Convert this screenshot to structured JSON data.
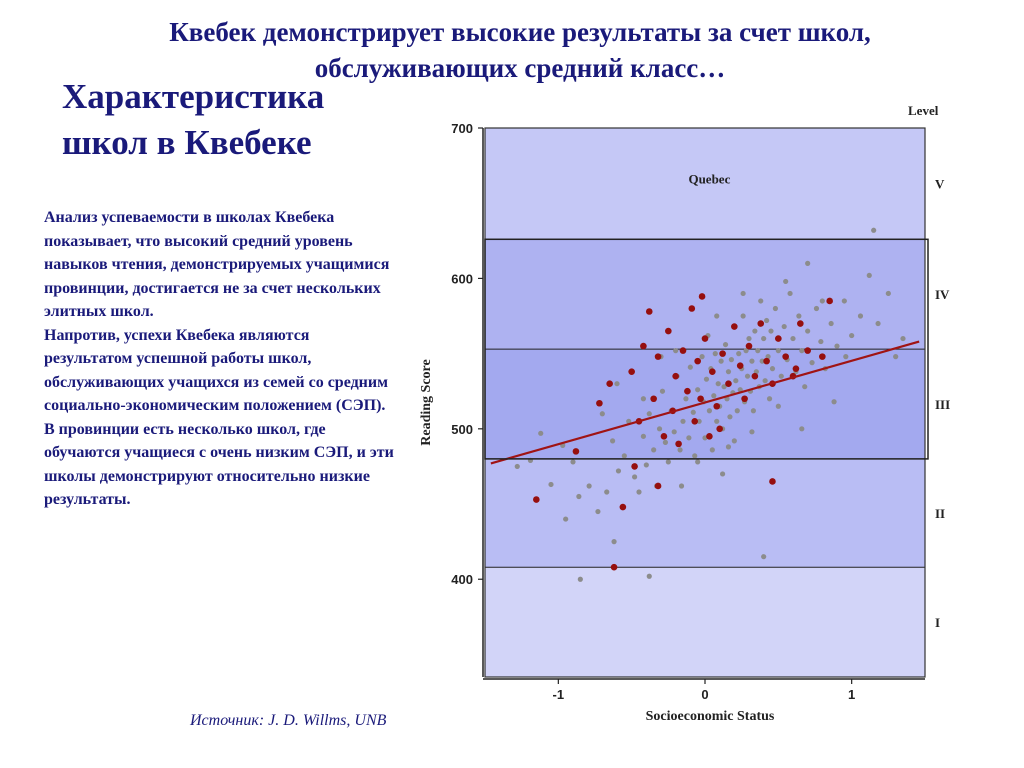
{
  "slide": {
    "headline": "Квебек демонстрирует высокие результаты за счет школ, обслуживающих средний класс…",
    "section_title": "Характеристика школ в Квебеке",
    "body": "Анализ успеваемости в школах Квебека показывает, что высокий средний уровень навыков чтения, демонстрируемых учащимися провинции, достигается не за счет нескольких элитных школ.\nНапротив, успехи Квебека являются результатом успешной работы школ, обслуживающих учащихся из семей со средним социально-экономическим положением (СЭП).\nВ провинции есть несколько школ, где обучаются учащиеся с очень низким СЭП, и эти школы демонстрируют относительно низкие результаты.",
    "source": "Источник:  J. D. Willms, UNB"
  },
  "chart_data": {
    "type": "scatter",
    "title": "",
    "xlabel": "Socioeconomic Status",
    "ylabel": "Reading Score",
    "xlim": [
      -1.5,
      1.5
    ],
    "ylim": [
      335,
      700
    ],
    "x_ticks": [
      {
        "value": -1,
        "label": "-1"
      },
      {
        "value": 0,
        "label": "0"
      },
      {
        "value": 1,
        "label": "1"
      }
    ],
    "y_ticks": [
      {
        "value": 400,
        "label": "400"
      },
      {
        "value": 500,
        "label": "500"
      },
      {
        "value": 600,
        "label": "600"
      },
      {
        "value": 700,
        "label": "700"
      }
    ],
    "levels_label": "Level",
    "levels": [
      {
        "name": "I",
        "from": 335,
        "to": 408,
        "color": "#d2d4f8"
      },
      {
        "name": "II",
        "from": 408,
        "to": 480,
        "color": "#b9bdf4"
      },
      {
        "name": "III",
        "from": 480,
        "to": 553,
        "color": "#a3a9ef"
      },
      {
        "name": "IV",
        "from": 553,
        "to": 626,
        "color": "#aeb2f1"
      },
      {
        "name": "V",
        "from": 626,
        "to": 700,
        "color": "#c5c8f6"
      }
    ],
    "annotation": {
      "text": "Quebec",
      "x": 0.03,
      "y": 663
    },
    "regression": {
      "x1": -1.46,
      "y1": 477,
      "x2": 1.46,
      "y2": 558,
      "color": "#a01414"
    },
    "series": [
      {
        "color": "#8c8c8c",
        "points": [
          [
            -1.28,
            475
          ],
          [
            -1.19,
            479
          ],
          [
            -1.12,
            497
          ],
          [
            -1.05,
            463
          ],
          [
            -0.97,
            489
          ],
          [
            -0.9,
            478
          ],
          [
            -0.86,
            455
          ],
          [
            -0.79,
            462
          ],
          [
            -0.73,
            445
          ],
          [
            -0.67,
            458
          ],
          [
            -0.63,
            492
          ],
          [
            -0.59,
            472
          ],
          [
            -0.55,
            482
          ],
          [
            -0.52,
            505
          ],
          [
            -0.48,
            468
          ],
          [
            -0.45,
            458
          ],
          [
            -0.42,
            495
          ],
          [
            -0.4,
            476
          ],
          [
            -0.38,
            510
          ],
          [
            -0.35,
            486
          ],
          [
            -0.33,
            462
          ],
          [
            -0.31,
            500
          ],
          [
            -0.29,
            525
          ],
          [
            -0.27,
            491
          ],
          [
            -0.25,
            478
          ],
          [
            -0.23,
            512
          ],
          [
            -0.21,
            498
          ],
          [
            -0.19,
            535
          ],
          [
            -0.17,
            486
          ],
          [
            -0.15,
            505
          ],
          [
            -0.13,
            520
          ],
          [
            -0.11,
            494
          ],
          [
            -0.1,
            541
          ],
          [
            -0.08,
            511
          ],
          [
            -0.07,
            482
          ],
          [
            -0.05,
            526
          ],
          [
            -0.04,
            505
          ],
          [
            -0.02,
            548
          ],
          [
            -0.01,
            518
          ],
          [
            0.0,
            494
          ],
          [
            0.01,
            533
          ],
          [
            0.02,
            562
          ],
          [
            0.03,
            512
          ],
          [
            0.04,
            540
          ],
          [
            0.05,
            486
          ],
          [
            0.06,
            522
          ],
          [
            0.07,
            550
          ],
          [
            0.08,
            505
          ],
          [
            0.09,
            530
          ],
          [
            0.1,
            515
          ],
          [
            0.11,
            545
          ],
          [
            0.12,
            500
          ],
          [
            0.13,
            528
          ],
          [
            0.14,
            556
          ],
          [
            0.15,
            520
          ],
          [
            0.16,
            538
          ],
          [
            0.17,
            508
          ],
          [
            0.18,
            546
          ],
          [
            0.19,
            524
          ],
          [
            0.2,
            568
          ],
          [
            0.21,
            532
          ],
          [
            0.22,
            512
          ],
          [
            0.23,
            550
          ],
          [
            0.24,
            526
          ],
          [
            0.25,
            540
          ],
          [
            0.26,
            575
          ],
          [
            0.27,
            518
          ],
          [
            0.28,
            552
          ],
          [
            0.29,
            535
          ],
          [
            0.3,
            560
          ],
          [
            0.31,
            525
          ],
          [
            0.32,
            545
          ],
          [
            0.33,
            512
          ],
          [
            0.34,
            565
          ],
          [
            0.35,
            538
          ],
          [
            0.36,
            552
          ],
          [
            0.37,
            528
          ],
          [
            0.38,
            585
          ],
          [
            0.39,
            545
          ],
          [
            0.4,
            560
          ],
          [
            0.41,
            532
          ],
          [
            0.42,
            572
          ],
          [
            0.43,
            548
          ],
          [
            0.44,
            520
          ],
          [
            0.45,
            565
          ],
          [
            0.46,
            540
          ],
          [
            0.48,
            580
          ],
          [
            0.5,
            552
          ],
          [
            0.52,
            535
          ],
          [
            0.54,
            568
          ],
          [
            0.56,
            546
          ],
          [
            0.58,
            590
          ],
          [
            0.6,
            560
          ],
          [
            0.62,
            538
          ],
          [
            0.64,
            575
          ],
          [
            0.66,
            552
          ],
          [
            0.68,
            528
          ],
          [
            0.7,
            565
          ],
          [
            0.73,
            544
          ],
          [
            0.76,
            580
          ],
          [
            0.79,
            558
          ],
          [
            0.82,
            540
          ],
          [
            0.86,
            570
          ],
          [
            0.9,
            555
          ],
          [
            0.95,
            585
          ],
          [
            1.0,
            562
          ],
          [
            1.06,
            575
          ],
          [
            1.12,
            602
          ],
          [
            1.18,
            570
          ],
          [
            1.25,
            590
          ],
          [
            1.35,
            560
          ],
          [
            -0.85,
            400
          ],
          [
            -0.62,
            425
          ],
          [
            -0.38,
            402
          ],
          [
            0.4,
            415
          ],
          [
            -0.95,
            440
          ],
          [
            1.15,
            632
          ],
          [
            0.8,
            585
          ],
          [
            0.96,
            548
          ],
          [
            -0.3,
            548
          ],
          [
            0.26,
            590
          ],
          [
            0.7,
            610
          ],
          [
            -0.16,
            462
          ],
          [
            0.12,
            470
          ],
          [
            -0.05,
            478
          ],
          [
            0.2,
            492
          ],
          [
            0.32,
            498
          ],
          [
            -0.42,
            520
          ],
          [
            -0.2,
            552
          ],
          [
            0.08,
            575
          ],
          [
            0.5,
            515
          ],
          [
            0.66,
            500
          ],
          [
            0.88,
            518
          ],
          [
            -0.6,
            530
          ],
          [
            -0.7,
            510
          ],
          [
            0.16,
            488
          ],
          [
            0.55,
            598
          ],
          [
            1.3,
            548
          ]
        ]
      },
      {
        "color": "#960f0f",
        "points": [
          [
            -1.15,
            453
          ],
          [
            -0.88,
            485
          ],
          [
            -0.72,
            517
          ],
          [
            -0.65,
            530
          ],
          [
            -0.62,
            408
          ],
          [
            -0.5,
            538
          ],
          [
            -0.48,
            475
          ],
          [
            -0.45,
            505
          ],
          [
            -0.42,
            555
          ],
          [
            -0.38,
            578
          ],
          [
            -0.35,
            520
          ],
          [
            -0.32,
            548
          ],
          [
            -0.28,
            495
          ],
          [
            -0.25,
            565
          ],
          [
            -0.22,
            512
          ],
          [
            -0.2,
            535
          ],
          [
            -0.18,
            490
          ],
          [
            -0.15,
            552
          ],
          [
            -0.12,
            525
          ],
          [
            -0.09,
            580
          ],
          [
            -0.07,
            505
          ],
          [
            -0.05,
            545
          ],
          [
            -0.03,
            520
          ],
          [
            0.0,
            560
          ],
          [
            0.03,
            495
          ],
          [
            0.05,
            538
          ],
          [
            0.08,
            515
          ],
          [
            0.12,
            550
          ],
          [
            0.16,
            530
          ],
          [
            0.2,
            568
          ],
          [
            0.24,
            542
          ],
          [
            0.27,
            520
          ],
          [
            0.3,
            555
          ],
          [
            0.34,
            535
          ],
          [
            0.38,
            570
          ],
          [
            0.42,
            545
          ],
          [
            0.46,
            530
          ],
          [
            0.5,
            560
          ],
          [
            0.55,
            548
          ],
          [
            0.6,
            535
          ],
          [
            0.65,
            570
          ],
          [
            0.7,
            552
          ],
          [
            0.8,
            548
          ],
          [
            0.85,
            585
          ],
          [
            -0.02,
            588
          ],
          [
            0.46,
            465
          ],
          [
            -0.56,
            448
          ],
          [
            0.1,
            500
          ],
          [
            -0.32,
            462
          ],
          [
            0.62,
            540
          ]
        ]
      }
    ]
  }
}
